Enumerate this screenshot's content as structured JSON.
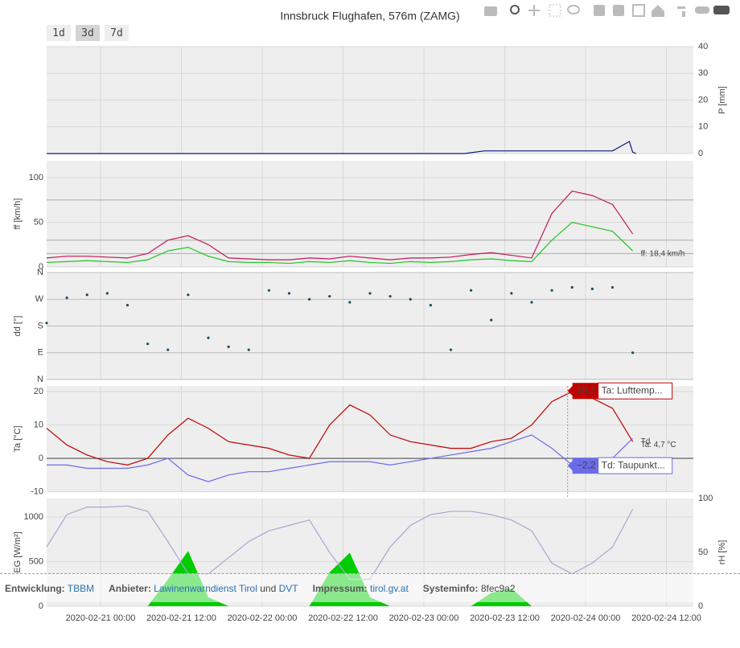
{
  "title": "Innsbruck Flughafen, 576m (ZAMG)",
  "range_buttons": [
    "1d",
    "3d",
    "7d"
  ],
  "footer": [
    {
      "label": "Entwicklung:",
      "links": [
        "TBBM"
      ]
    },
    {
      "label": "Anbieter:",
      "links": [
        "Lawinenwarndienst Tirol",
        "DVT"
      ],
      "joiner": "und"
    },
    {
      "label": "Impressum:",
      "links": [
        "tirol.gv.at"
      ]
    },
    {
      "label": "Systeminfo:",
      "text": "8fec9a2"
    }
  ],
  "chart_data": [
    {
      "type": "line",
      "y_title": "P [mm]",
      "y_title_color": "#0a1a7a",
      "y_side": "right",
      "x": [
        "2020-02-20 16:00",
        "2020-02-23 06:00",
        "2020-02-23 09:00",
        "2020-02-24 04:00",
        "2020-02-24 06:30",
        "2020-02-24 07:00",
        "2020-02-24 07:30"
      ],
      "series": [
        {
          "color": "#0a1a7a",
          "values": [
            0,
            0,
            1,
            1,
            4.5,
            0.5,
            0
          ]
        }
      ],
      "xlim": [
        "2020-02-20 16:00",
        "2020-02-24 16:00"
      ],
      "ylim": [
        0,
        40
      ],
      "yticks": [
        0,
        10,
        20,
        30,
        40
      ],
      "grid": true
    },
    {
      "type": "line",
      "y_title": "ff [km/h]",
      "y_title_color": "#22b022",
      "y_side": "left",
      "x": [
        "2020-02-20 16:00",
        "2020-02-20 19:00",
        "2020-02-20 22:00",
        "2020-02-21 01:00",
        "2020-02-21 04:00",
        "2020-02-21 07:00",
        "2020-02-21 10:00",
        "2020-02-21 13:00",
        "2020-02-21 16:00",
        "2020-02-21 19:00",
        "2020-02-21 22:00",
        "2020-02-22 01:00",
        "2020-02-22 04:00",
        "2020-02-22 07:00",
        "2020-02-22 10:00",
        "2020-02-22 13:00",
        "2020-02-22 16:00",
        "2020-02-22 19:00",
        "2020-02-22 22:00",
        "2020-02-23 01:00",
        "2020-02-23 04:00",
        "2020-02-23 07:00",
        "2020-02-23 10:00",
        "2020-02-23 13:00",
        "2020-02-23 16:00",
        "2020-02-23 19:00",
        "2020-02-23 22:00",
        "2020-02-24 01:00",
        "2020-02-24 04:00",
        "2020-02-24 07:00"
      ],
      "series": [
        {
          "color": "#c2185b",
          "values": [
            10,
            12,
            12,
            11,
            10,
            15,
            30,
            35,
            25,
            10,
            9,
            8,
            8,
            10,
            9,
            12,
            10,
            8,
            10,
            10,
            11,
            14,
            16,
            13,
            10,
            60,
            85,
            80,
            70,
            37
          ]
        },
        {
          "color": "#22c422",
          "values": [
            5,
            6,
            7,
            6,
            5,
            8,
            18,
            22,
            12,
            6,
            5,
            5,
            4,
            6,
            5,
            7,
            5,
            4,
            6,
            5,
            6,
            8,
            9,
            7,
            6,
            30,
            50,
            45,
            40,
            18
          ],
          "end_label": "ff: 18,4 km/h"
        }
      ],
      "ref_lines": [
        75,
        30,
        15
      ],
      "xlim": [
        "2020-02-20 16:00",
        "2020-02-24 16:00"
      ],
      "ylim": [
        0,
        119
      ],
      "yticks": [
        0,
        50,
        100
      ],
      "grid": true
    },
    {
      "type": "scatter",
      "y_title": "dd [°]",
      "y_title_color": "#1b4b63",
      "y_side": "left",
      "x": [
        "2020-02-20 16:00",
        "2020-02-20 19:00",
        "2020-02-20 22:00",
        "2020-02-21 01:00",
        "2020-02-21 04:00",
        "2020-02-21 07:00",
        "2020-02-21 10:00",
        "2020-02-21 13:00",
        "2020-02-21 16:00",
        "2020-02-21 19:00",
        "2020-02-21 22:00",
        "2020-02-22 01:00",
        "2020-02-22 04:00",
        "2020-02-22 07:00",
        "2020-02-22 10:00",
        "2020-02-22 13:00",
        "2020-02-22 16:00",
        "2020-02-22 19:00",
        "2020-02-22 22:00",
        "2020-02-23 01:00",
        "2020-02-23 04:00",
        "2020-02-23 07:00",
        "2020-02-23 10:00",
        "2020-02-23 13:00",
        "2020-02-23 16:00",
        "2020-02-23 19:00",
        "2020-02-23 22:00",
        "2020-02-24 01:00",
        "2020-02-24 04:00",
        "2020-02-24 07:00"
      ],
      "series": [
        {
          "color": "#1b4b63",
          "values": [
            190,
            275,
            285,
            290,
            250,
            120,
            100,
            285,
            140,
            110,
            100,
            300,
            290,
            270,
            280,
            260,
            290,
            280,
            270,
            250,
            100,
            300,
            200,
            290,
            260,
            300,
            310,
            305,
            310,
            90
          ]
        }
      ],
      "xlim": [
        "2020-02-20 16:00",
        "2020-02-24 16:00"
      ],
      "ylim": [
        0,
        360
      ],
      "yticks": [
        {
          "value": 0,
          "label": "N"
        },
        {
          "value": 90,
          "label": "E"
        },
        {
          "value": 180,
          "label": "S"
        },
        {
          "value": 270,
          "label": "W"
        },
        {
          "value": 360,
          "label": "N"
        }
      ],
      "grid": true
    },
    {
      "type": "line",
      "y_title": "Ta [°C]",
      "y_title_color": "#c00000",
      "y_side": "left",
      "zeroline": true,
      "x": [
        "2020-02-20 16:00",
        "2020-02-20 19:00",
        "2020-02-20 22:00",
        "2020-02-21 01:00",
        "2020-02-21 04:00",
        "2020-02-21 07:00",
        "2020-02-21 10:00",
        "2020-02-21 13:00",
        "2020-02-21 16:00",
        "2020-02-21 19:00",
        "2020-02-21 22:00",
        "2020-02-22 01:00",
        "2020-02-22 04:00",
        "2020-02-22 07:00",
        "2020-02-22 10:00",
        "2020-02-22 13:00",
        "2020-02-22 16:00",
        "2020-02-22 19:00",
        "2020-02-22 22:00",
        "2020-02-23 01:00",
        "2020-02-23 04:00",
        "2020-02-23 07:00",
        "2020-02-23 10:00",
        "2020-02-23 13:00",
        "2020-02-23 16:00",
        "2020-02-23 19:00",
        "2020-02-23 22:00",
        "2020-02-24 01:00",
        "2020-02-24 04:00",
        "2020-02-24 07:00"
      ],
      "series": [
        {
          "color": "#c00000",
          "values": [
            9,
            4,
            1,
            -1,
            -2,
            0,
            7,
            12,
            9,
            5,
            4,
            3,
            1,
            0,
            10,
            16,
            13,
            7,
            5,
            4,
            3,
            3,
            5,
            6,
            10,
            17,
            20,
            18,
            15,
            5
          ],
          "end_label": "Ta: 4,7 °C"
        },
        {
          "color": "#6b6bea",
          "values": [
            -2,
            -2,
            -3,
            -3,
            -3,
            -2,
            0,
            -5,
            -7,
            -5,
            -4,
            -4,
            -3,
            -2,
            -1,
            -1,
            -1,
            -2,
            -1,
            0,
            1,
            2,
            3,
            5,
            7,
            3,
            -2,
            -4,
            0,
            6
          ],
          "end_label": "Td"
        }
      ],
      "hover": {
        "x": "2020-02-23 21:20",
        "labels": [
          {
            "value": 20.2,
            "value_label": "20,2",
            "name": "Ta: Lufttemp...",
            "color": "#c00000"
          },
          {
            "value": -2.2,
            "value_label": "−2,2",
            "name": "Td: Taupunkt...",
            "color": "#6b6bea"
          }
        ]
      },
      "xlim": [
        "2020-02-20 16:00",
        "2020-02-24 16:00"
      ],
      "ylim": [
        -10.1,
        21.7
      ],
      "yticks": [
        -10,
        0,
        10,
        20
      ],
      "grid": true
    },
    {
      "type": "area",
      "y_title": "EG [W/m²]",
      "y_title_color": "#22b022",
      "y_side": "left",
      "y2_title": "rH [%]",
      "y2_title_color": "#aaaaaa",
      "x": [
        "2020-02-20 16:00",
        "2020-02-20 19:00",
        "2020-02-20 22:00",
        "2020-02-21 01:00",
        "2020-02-21 04:00",
        "2020-02-21 07:00",
        "2020-02-21 10:00",
        "2020-02-21 13:00",
        "2020-02-21 16:00",
        "2020-02-21 19:00",
        "2020-02-21 22:00",
        "2020-02-22 01:00",
        "2020-02-22 04:00",
        "2020-02-22 07:00",
        "2020-02-22 10:00",
        "2020-02-22 13:00",
        "2020-02-22 16:00",
        "2020-02-22 19:00",
        "2020-02-22 22:00",
        "2020-02-23 01:00",
        "2020-02-23 04:00",
        "2020-02-23 07:00",
        "2020-02-23 10:00",
        "2020-02-23 13:00",
        "2020-02-23 16:00",
        "2020-02-23 19:00",
        "2020-02-23 22:00",
        "2020-02-24 01:00",
        "2020-02-24 04:00",
        "2020-02-24 07:00"
      ],
      "series": [
        {
          "color": "#00cc00",
          "values": [
            0,
            0,
            0,
            0,
            0,
            0,
            300,
            620,
            100,
            0,
            0,
            0,
            0,
            0,
            380,
            600,
            100,
            0,
            0,
            0,
            0,
            0,
            150,
            200,
            0,
            0,
            0,
            0,
            0,
            0
          ]
        },
        {
          "color": "#aaa6d0",
          "type": "line",
          "axis": "y2",
          "values": [
            55,
            85,
            92,
            92,
            93,
            88,
            60,
            30,
            30,
            45,
            60,
            70,
            75,
            80,
            50,
            25,
            25,
            55,
            75,
            85,
            88,
            88,
            85,
            80,
            70,
            40,
            30,
            40,
            55,
            90
          ]
        }
      ],
      "xlim": [
        "2020-02-20 16:00",
        "2020-02-24 16:00"
      ],
      "ylim": [
        0,
        1209
      ],
      "yticks": [
        0,
        500,
        1000
      ],
      "y2lim": [
        0,
        100
      ],
      "y2ticks": [
        0,
        50,
        100
      ],
      "xticks": [
        "2020-02-21 00:00",
        "2020-02-21 12:00",
        "2020-02-22 00:00",
        "2020-02-22 12:00",
        "2020-02-23 00:00",
        "2020-02-23 12:00",
        "2020-02-24 00:00",
        "2020-02-24 12:00"
      ],
      "grid": true
    }
  ]
}
